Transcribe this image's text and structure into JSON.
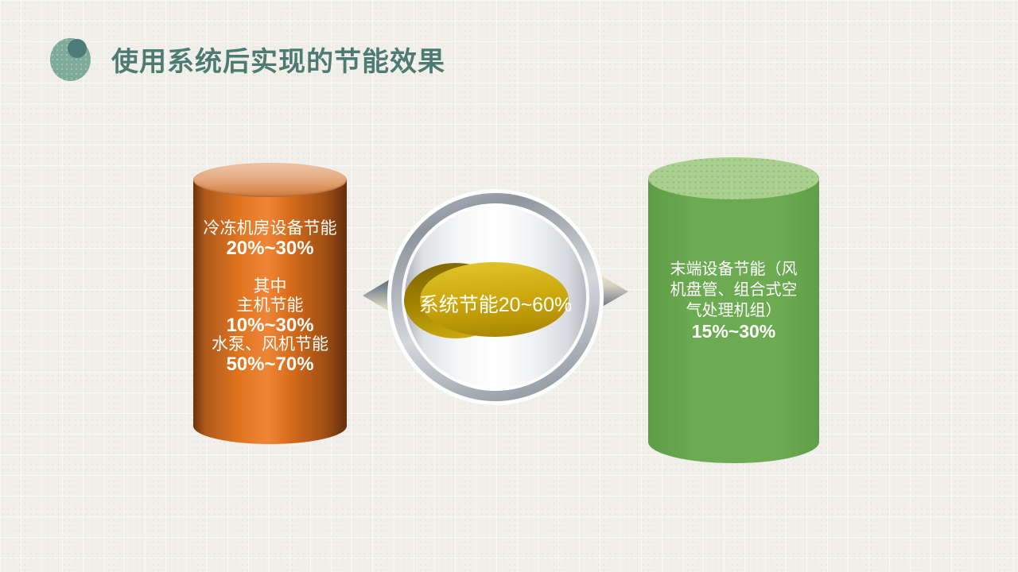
{
  "slide": {
    "title": "使用系统后实现的节能效果"
  },
  "colors": {
    "title_teal": "#4e7a74",
    "decor_circle_light": "#7ea99d",
    "decor_circle_dark": "#4e7d79",
    "orange_body": "#d96e1c",
    "orange_top": "#e5ac81",
    "green_body": "#6cab51",
    "green_top": "#a9d08e",
    "gold_main": "#cda90e",
    "gold_dark": "#a08200",
    "silver_ring": "#9aa0a9",
    "arrow_dark": "#4f5a66",
    "arrow_light": "#f2ecd8",
    "shape_text": "#ffffff"
  },
  "left_cylinder": {
    "line1": "冷冻机房设备节能",
    "line2": "20%~30%",
    "line3": "其中",
    "line4": "主机节能",
    "line5": "10%~30%",
    "line6": "水泵、风机节能",
    "line7": "50%~70%"
  },
  "center_sphere": {
    "label": "系统节能20~60%"
  },
  "right_cylinder": {
    "line1": "末端设备节能（风",
    "line2": "机盘管、组合式空",
    "line3": "气处理机组）",
    "line4": "15%~30%"
  }
}
